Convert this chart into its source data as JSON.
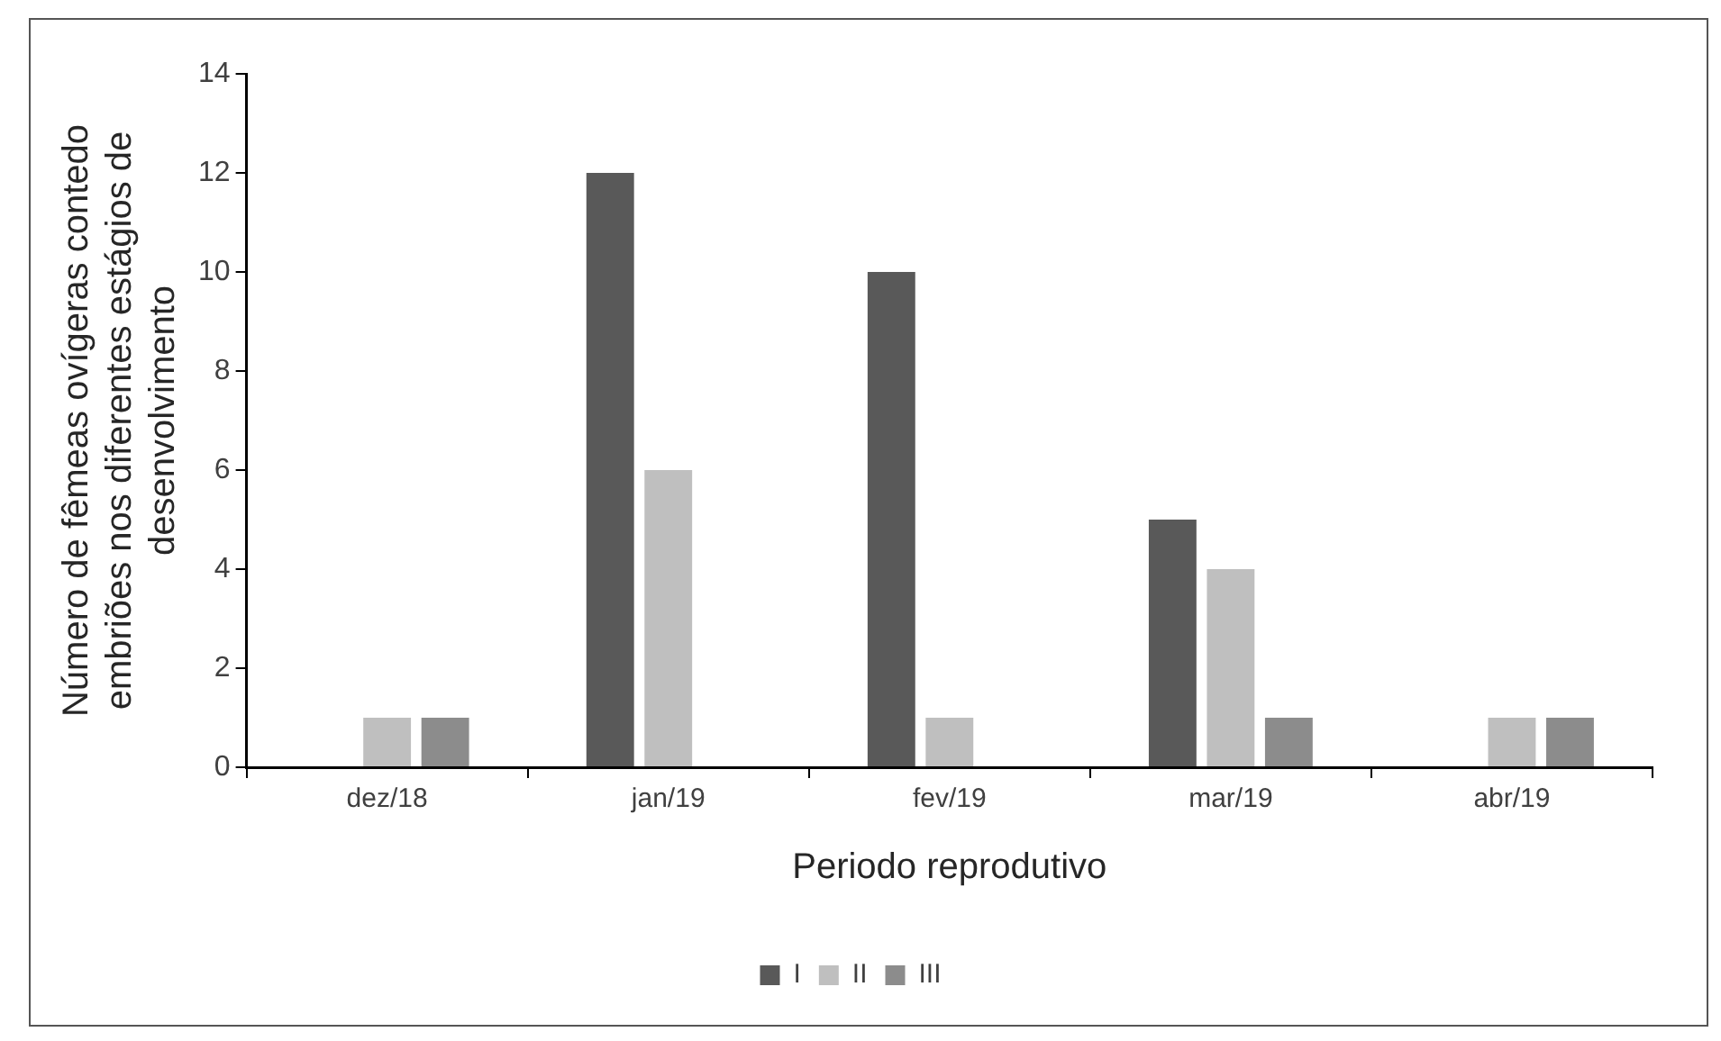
{
  "chart_data": {
    "type": "bar",
    "xlabel": "Periodo reprodutivo",
    "ylabel": "Número de fêmeas ovígeras contedo embriões nos diferentes estágios de desenvolvimento",
    "categories": [
      "dez/18",
      "jan/19",
      "fev/19",
      "mar/19",
      "abr/19"
    ],
    "series": [
      {
        "name": "I",
        "color": "#595959",
        "values": [
          0,
          12,
          10,
          5,
          0
        ]
      },
      {
        "name": "II",
        "color": "#bfbfbf",
        "values": [
          1,
          6,
          1,
          4,
          1
        ]
      },
      {
        "name": "III",
        "color": "#8c8c8c",
        "values": [
          1,
          0,
          0,
          1,
          1
        ]
      }
    ],
    "ylim": [
      0,
      14
    ],
    "yticks": [
      0,
      2,
      4,
      6,
      8,
      10,
      12,
      14
    ],
    "grid": false,
    "legend": "bottom"
  }
}
